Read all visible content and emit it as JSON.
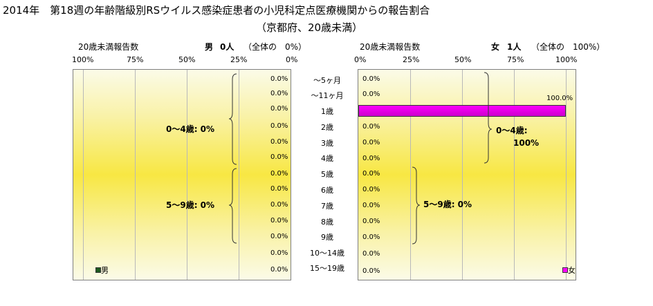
{
  "title_line1": "2014年　第18週の年齢階級別RSウイルス感染症患者の小児科定点医療機関からの報告割合",
  "title_line2": "（京都府、20歳未満）",
  "left": {
    "axis_title": "20歳未満報告数",
    "sex_label": "男",
    "count_label": "0人",
    "share_label": "（全体の　0%）",
    "ticks": [
      "100%",
      "75%",
      "50%",
      "25%",
      "0%"
    ],
    "values": [
      "0.0%",
      "0.0%",
      "0.0%",
      "0.0%",
      "0.0%",
      "0.0%",
      "0.0%",
      "0.0%",
      "0.0%",
      "0.0%",
      "0.0%",
      "0.0%",
      "0.0%"
    ],
    "group1": "0～4歳: 0%",
    "group2": "5～9歳: 0%",
    "legend": "男",
    "color": "#1e5a1e"
  },
  "right": {
    "axis_title": "20歳未満報告数",
    "sex_label": "女",
    "count_label": "1人",
    "share_label": "（全体の　100%）",
    "ticks": [
      "0%",
      "25%",
      "50%",
      "75%",
      "100%"
    ],
    "values": [
      "0.0%",
      "0.0%",
      "100.0%",
      "0.0%",
      "0.0%",
      "0.0%",
      "0.0%",
      "0.0%",
      "0.0%",
      "0.0%",
      "0.0%",
      "0.0%",
      "0.0%"
    ],
    "group1_line1": "0～4歳:",
    "group1_line2": "100%",
    "group2": "5～9歳: 0%",
    "legend": "女",
    "color": "#ff00ff"
  },
  "ages": [
    "～5ヶ月",
    "～11ヶ月",
    "1歳",
    "2歳",
    "3歳",
    "4歳",
    "5歳",
    "6歳",
    "7歳",
    "8歳",
    "9歳",
    "10～14歳",
    "15～19歳"
  ],
  "chart_data": {
    "type": "bar",
    "categories": [
      "～5ヶ月",
      "～11ヶ月",
      "1歳",
      "2歳",
      "3歳",
      "4歳",
      "5歳",
      "6歳",
      "7歳",
      "8歳",
      "9歳",
      "10～14歳",
      "15～19歳"
    ],
    "series": [
      {
        "name": "男",
        "values": [
          0,
          0,
          0,
          0,
          0,
          0,
          0,
          0,
          0,
          0,
          0,
          0,
          0
        ]
      },
      {
        "name": "女",
        "values": [
          0,
          0,
          100,
          0,
          0,
          0,
          0,
          0,
          0,
          0,
          0,
          0,
          0
        ]
      }
    ],
    "xlim": [
      0,
      100
    ],
    "title": "2014年　第18週の年齢階級別RSウイルス感染症患者の小児科定点医療機関からの報告割合"
  }
}
